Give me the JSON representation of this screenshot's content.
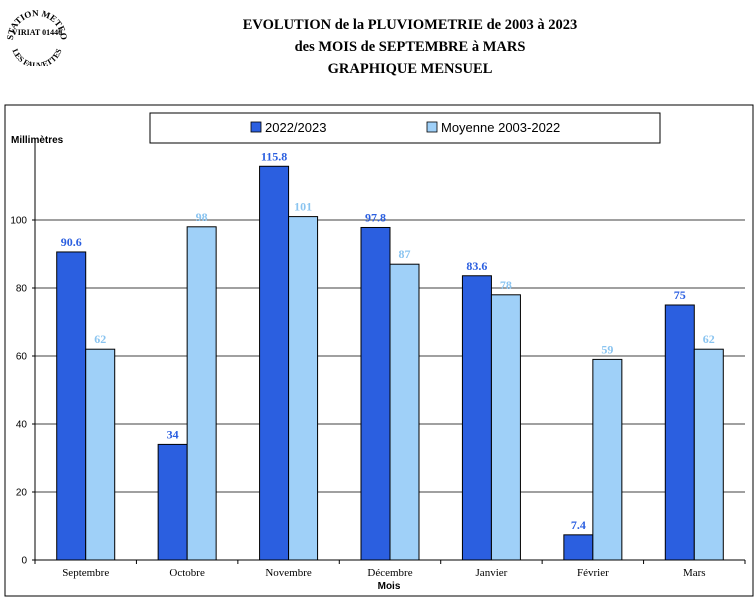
{
  "logo": {
    "top_text": "STATION METEO",
    "middle_text": "VIRIAT 01440",
    "bottom_text": "LES FAUVETTES"
  },
  "header": {
    "line1": "EVOLUTION de la PLUVIOMETRIE de 2003 à 2023",
    "line2": "des MOIS de SEPTEMBRE à MARS",
    "line3": "GRAPHIQUE MENSUEL"
  },
  "chart_data": {
    "type": "bar",
    "ylabel": "Millimètres",
    "xlabel": "Mois",
    "ylim": [
      0,
      120
    ],
    "yticks": [
      0,
      20,
      40,
      60,
      80,
      100
    ],
    "grid": true,
    "legend_position": "top",
    "categories": [
      "Septembre",
      "Octobre",
      "Novembre",
      "Décembre",
      "Janvier",
      "Février",
      "Mars"
    ],
    "series": [
      {
        "name": "2022/2023",
        "color": "#2b5fe0",
        "label_color": "#2b5fe0",
        "values": [
          90.6,
          34,
          115.8,
          97.8,
          83.6,
          7.4,
          75
        ],
        "labels": [
          "90.6",
          "34",
          "115.8",
          "97.8",
          "83.6",
          "7.4",
          "75"
        ]
      },
      {
        "name": "Moyenne 2003-2022",
        "color": "#9fd0f8",
        "label_color": "#8ac4f0",
        "values": [
          62,
          98,
          101,
          87,
          78,
          59,
          62
        ],
        "labels": [
          "62",
          "98",
          "101",
          "87",
          "78",
          "59",
          "62"
        ]
      }
    ]
  }
}
